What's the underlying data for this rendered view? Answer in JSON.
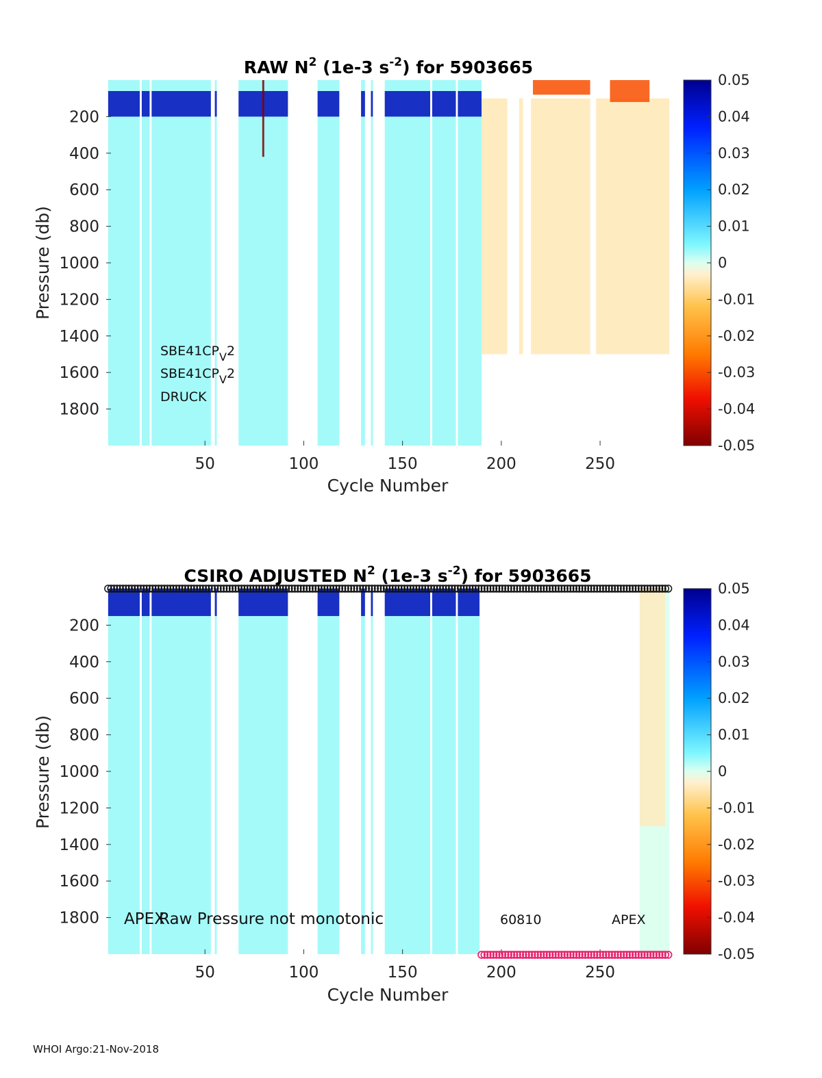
{
  "chart_data": [
    {
      "type": "heatmap",
      "title": {
        "prefix": "RAW N",
        "sup1": "2",
        "middle": " (1e-3 s",
        "sup2": "-2",
        "suffix": ") for 5903665"
      },
      "xlabel": "Cycle Number",
      "ylabel": "Pressure (db)",
      "xlim": [
        0,
        285
      ],
      "ylim": [
        0,
        2000
      ],
      "xticks": [
        50,
        100,
        150,
        200,
        250
      ],
      "yticks": [
        200,
        400,
        600,
        800,
        1000,
        1200,
        1400,
        1600,
        1800
      ],
      "colorbar": {
        "min": -0.05,
        "max": 0.05,
        "ticks": [
          "0.05",
          "0.04",
          "0.03",
          "0.02",
          "0.01",
          "0",
          "-0.01",
          "-0.02",
          "-0.03",
          "-0.04",
          "-0.05"
        ]
      },
      "missing_cycle_ranges": [
        [
          17,
          18
        ],
        [
          22,
          23
        ],
        [
          53,
          55
        ],
        [
          56,
          67
        ],
        [
          92,
          107
        ],
        [
          118,
          129
        ],
        [
          131,
          134
        ],
        [
          135,
          141
        ],
        [
          164,
          165
        ],
        [
          177,
          178
        ],
        [
          203,
          209
        ],
        [
          211,
          215
        ],
        [
          245,
          248
        ]
      ],
      "regions": [
        {
          "x": [
            1,
            190
          ],
          "p": [
            0,
            2000
          ],
          "value": 0.003
        },
        {
          "x": [
            190,
            285
          ],
          "p": [
            100,
            1500
          ],
          "value": -0.004
        }
      ],
      "features": [
        {
          "x": [
            1,
            190
          ],
          "p": [
            60,
            200
          ],
          "value": 0.045
        },
        {
          "x": [
            216,
            245
          ],
          "p": [
            0,
            80
          ],
          "value": -0.03
        },
        {
          "x": [
            255,
            275
          ],
          "p": [
            0,
            120
          ],
          "value": -0.03
        },
        {
          "x": [
            79,
            80
          ],
          "p": [
            0,
            420
          ],
          "value": -0.05
        }
      ],
      "annotations": [
        {
          "base": "SBE41CP",
          "sub": "V",
          "tail": "2"
        },
        {
          "base": "SBE41CP",
          "sub": "V",
          "tail": "2"
        },
        {
          "base": "DRUCK",
          "sub": "",
          "tail": ""
        }
      ]
    },
    {
      "type": "heatmap",
      "title": {
        "prefix": "CSIRO  ADJUSTED N",
        "sup1": "2",
        "middle": " (1e-3 s",
        "sup2": "-2",
        "suffix": ") for 5903665"
      },
      "xlabel": "Cycle Number",
      "ylabel": "Pressure (db)",
      "xlim": [
        0,
        285
      ],
      "ylim": [
        0,
        2000
      ],
      "xticks": [
        50,
        100,
        150,
        200,
        250
      ],
      "yticks": [
        200,
        400,
        600,
        800,
        1000,
        1200,
        1400,
        1600,
        1800
      ],
      "colorbar": {
        "min": -0.05,
        "max": 0.05,
        "ticks": [
          "0.05",
          "0.04",
          "0.03",
          "0.02",
          "0.01",
          "0",
          "-0.01",
          "-0.02",
          "-0.03",
          "-0.04",
          "-0.05"
        ]
      },
      "missing_cycle_ranges": [
        [
          17,
          18
        ],
        [
          22,
          23
        ],
        [
          53,
          55
        ],
        [
          56,
          67
        ],
        [
          92,
          107
        ],
        [
          118,
          129
        ],
        [
          131,
          134
        ],
        [
          135,
          141
        ],
        [
          164,
          165
        ],
        [
          177,
          178
        ],
        [
          189,
          270
        ]
      ],
      "regions": [
        {
          "x": [
            1,
            189
          ],
          "p": [
            0,
            2000
          ],
          "value": 0.003
        },
        {
          "x": [
            270,
            285
          ],
          "p": [
            0,
            2000
          ],
          "value": 0.0
        }
      ],
      "features": [
        {
          "x": [
            1,
            189
          ],
          "p": [
            0,
            150
          ],
          "value": 0.045
        },
        {
          "x": [
            270,
            283
          ],
          "p": [
            0,
            1300
          ],
          "value": -0.004
        }
      ],
      "flag_markers": {
        "top": {
          "series": "QC flag (black)",
          "x_range": [
            1,
            285
          ],
          "color": "#111111"
        },
        "bottom": {
          "series": "QC flag (magenta)",
          "x_range": [
            190,
            285
          ],
          "color": "#e8246e"
        }
      },
      "annotations": [
        {
          "text": "APEX",
          "x": 10
        },
        {
          "text": "Raw Pressure not monotonic",
          "x": 28
        },
        {
          "text": "60810",
          "x": 198
        },
        {
          "text": "APEX",
          "x": 255
        }
      ]
    }
  ],
  "footer": "WHOI Argo:21-Nov-2018"
}
